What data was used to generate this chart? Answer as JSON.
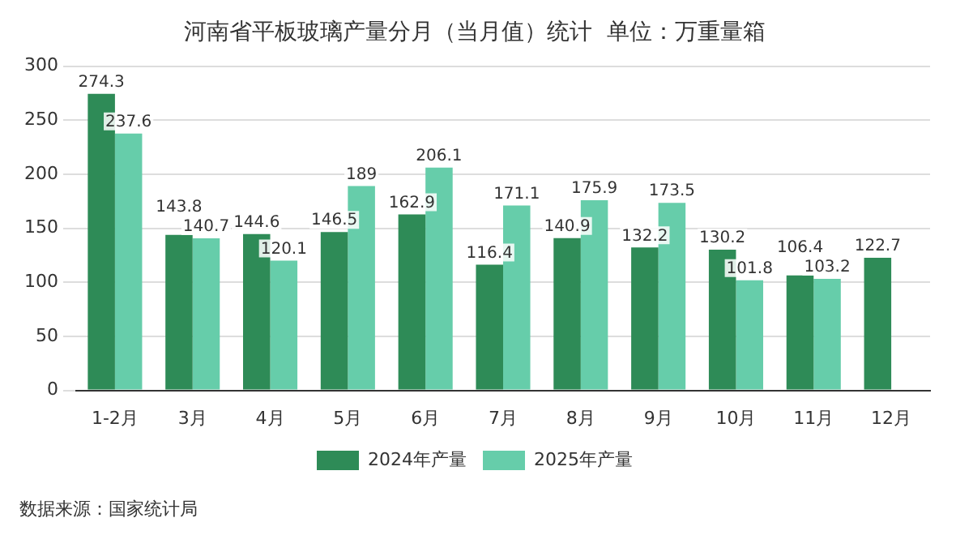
{
  "chart_data": {
    "type": "bar",
    "title": "河南省平板玻璃产量分月（当月值）统计  单位：万重量箱",
    "categories": [
      "1-2月",
      "3月",
      "4月",
      "5月",
      "6月",
      "7月",
      "8月",
      "9月",
      "10月",
      "11月",
      "12月"
    ],
    "series": [
      {
        "name": "2024年产量",
        "color": "#2e8b57",
        "values": [
          274.3,
          143.8,
          144.6,
          146.5,
          162.9,
          116.4,
          140.9,
          132.2,
          130.2,
          106.4,
          122.7
        ]
      },
      {
        "name": "2025年产量",
        "color": "#66cdaa",
        "values": [
          237.6,
          140.7,
          120.1,
          189,
          206.1,
          171.1,
          175.9,
          173.5,
          101.8,
          103.2,
          null
        ]
      }
    ],
    "ylim": [
      0,
      300
    ],
    "yticks": [
      0,
      50,
      100,
      150,
      200,
      250,
      300
    ],
    "grid": "y",
    "legend": "bottom",
    "data_labels": true,
    "annotations": [
      "数据来源：国家统计局"
    ]
  }
}
